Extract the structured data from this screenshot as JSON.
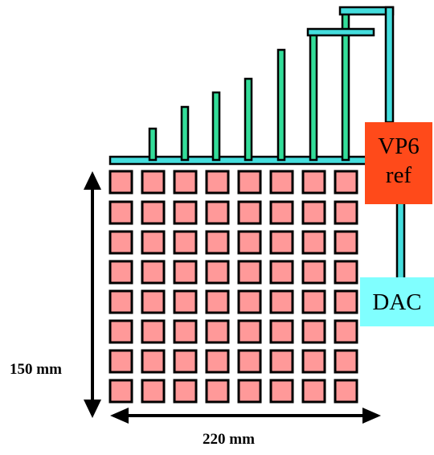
{
  "diagram": {
    "vp6_box": {
      "line1": "VP6",
      "line2": "ref",
      "color": "#ff4a1a"
    },
    "dac_box": {
      "label": "DAC",
      "color": "#80ffff"
    },
    "dimension_height": "150 mm",
    "dimension_width": "220 mm",
    "pad_grid": {
      "rows": 8,
      "cols": 8,
      "pad_color": "#ff9999"
    },
    "trace_colors": {
      "vertical": "#33dd99",
      "horizontal": "#44dddd",
      "outline": "#000000"
    }
  }
}
